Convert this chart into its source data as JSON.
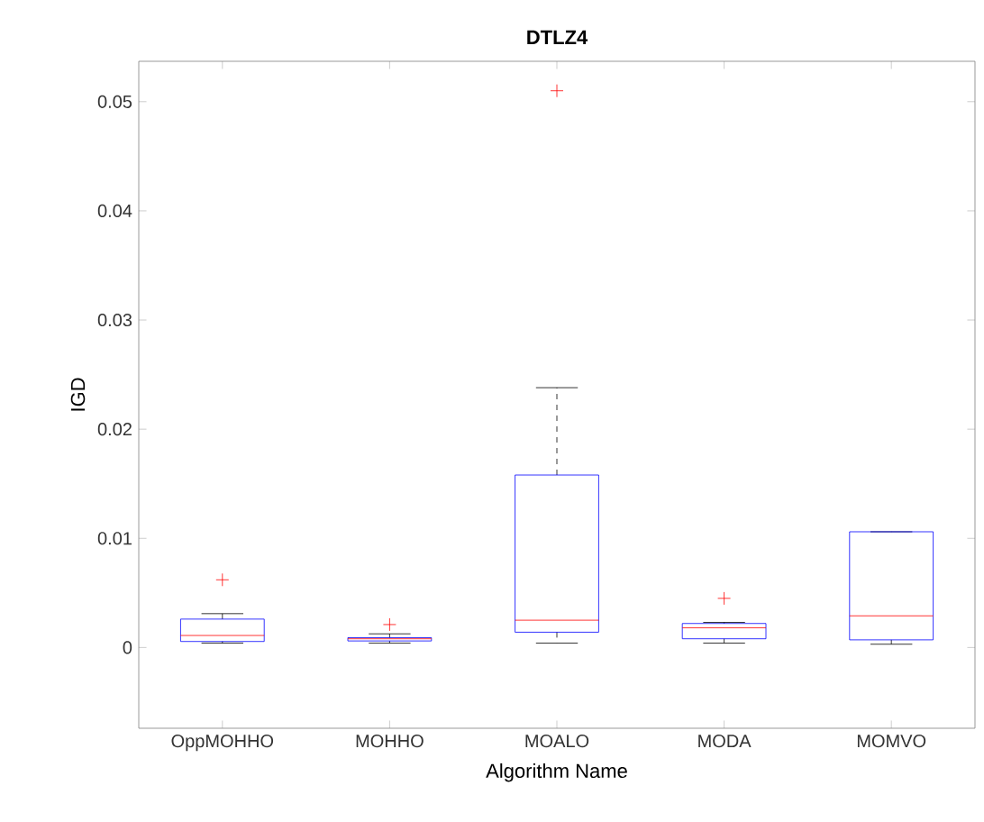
{
  "chart_data": {
    "type": "box",
    "title": "DTLZ4",
    "xlabel": "Algorithm Name",
    "ylabel": "IGD",
    "color": "#0000ff",
    "categories": [
      "OppMOHHO",
      "MOHHO",
      "MOALO",
      "MODA",
      "MOMVO"
    ],
    "boxes": [
      {
        "low": 0.0004,
        "q1": 0.00055,
        "median": 0.0011,
        "q3": 0.0026,
        "high": 0.0031,
        "outliers": [
          0.0062
        ]
      },
      {
        "low": 0.0004,
        "q1": 0.0006,
        "median": 0.0008,
        "q3": 0.0009,
        "high": 0.00125,
        "outliers": [
          0.0021
        ]
      },
      {
        "low": 0.0004,
        "q1": 0.0014,
        "median": 0.0025,
        "q3": 0.0158,
        "high": 0.0238,
        "outliers": [
          0.051
        ]
      },
      {
        "low": 0.0004,
        "q1": 0.0008,
        "median": 0.0018,
        "q3": 0.0022,
        "high": 0.0023,
        "outliers": [
          0.0045
        ]
      },
      {
        "low": 0.0003,
        "q1": 0.0007,
        "median": 0.0029,
        "q3": 0.0106,
        "high": 0.0106
      }
    ],
    "ylim": [
      -0.0074,
      0.0537
    ],
    "yticks": [
      0,
      0.01,
      0.02,
      0.03,
      0.04,
      0.05
    ]
  }
}
